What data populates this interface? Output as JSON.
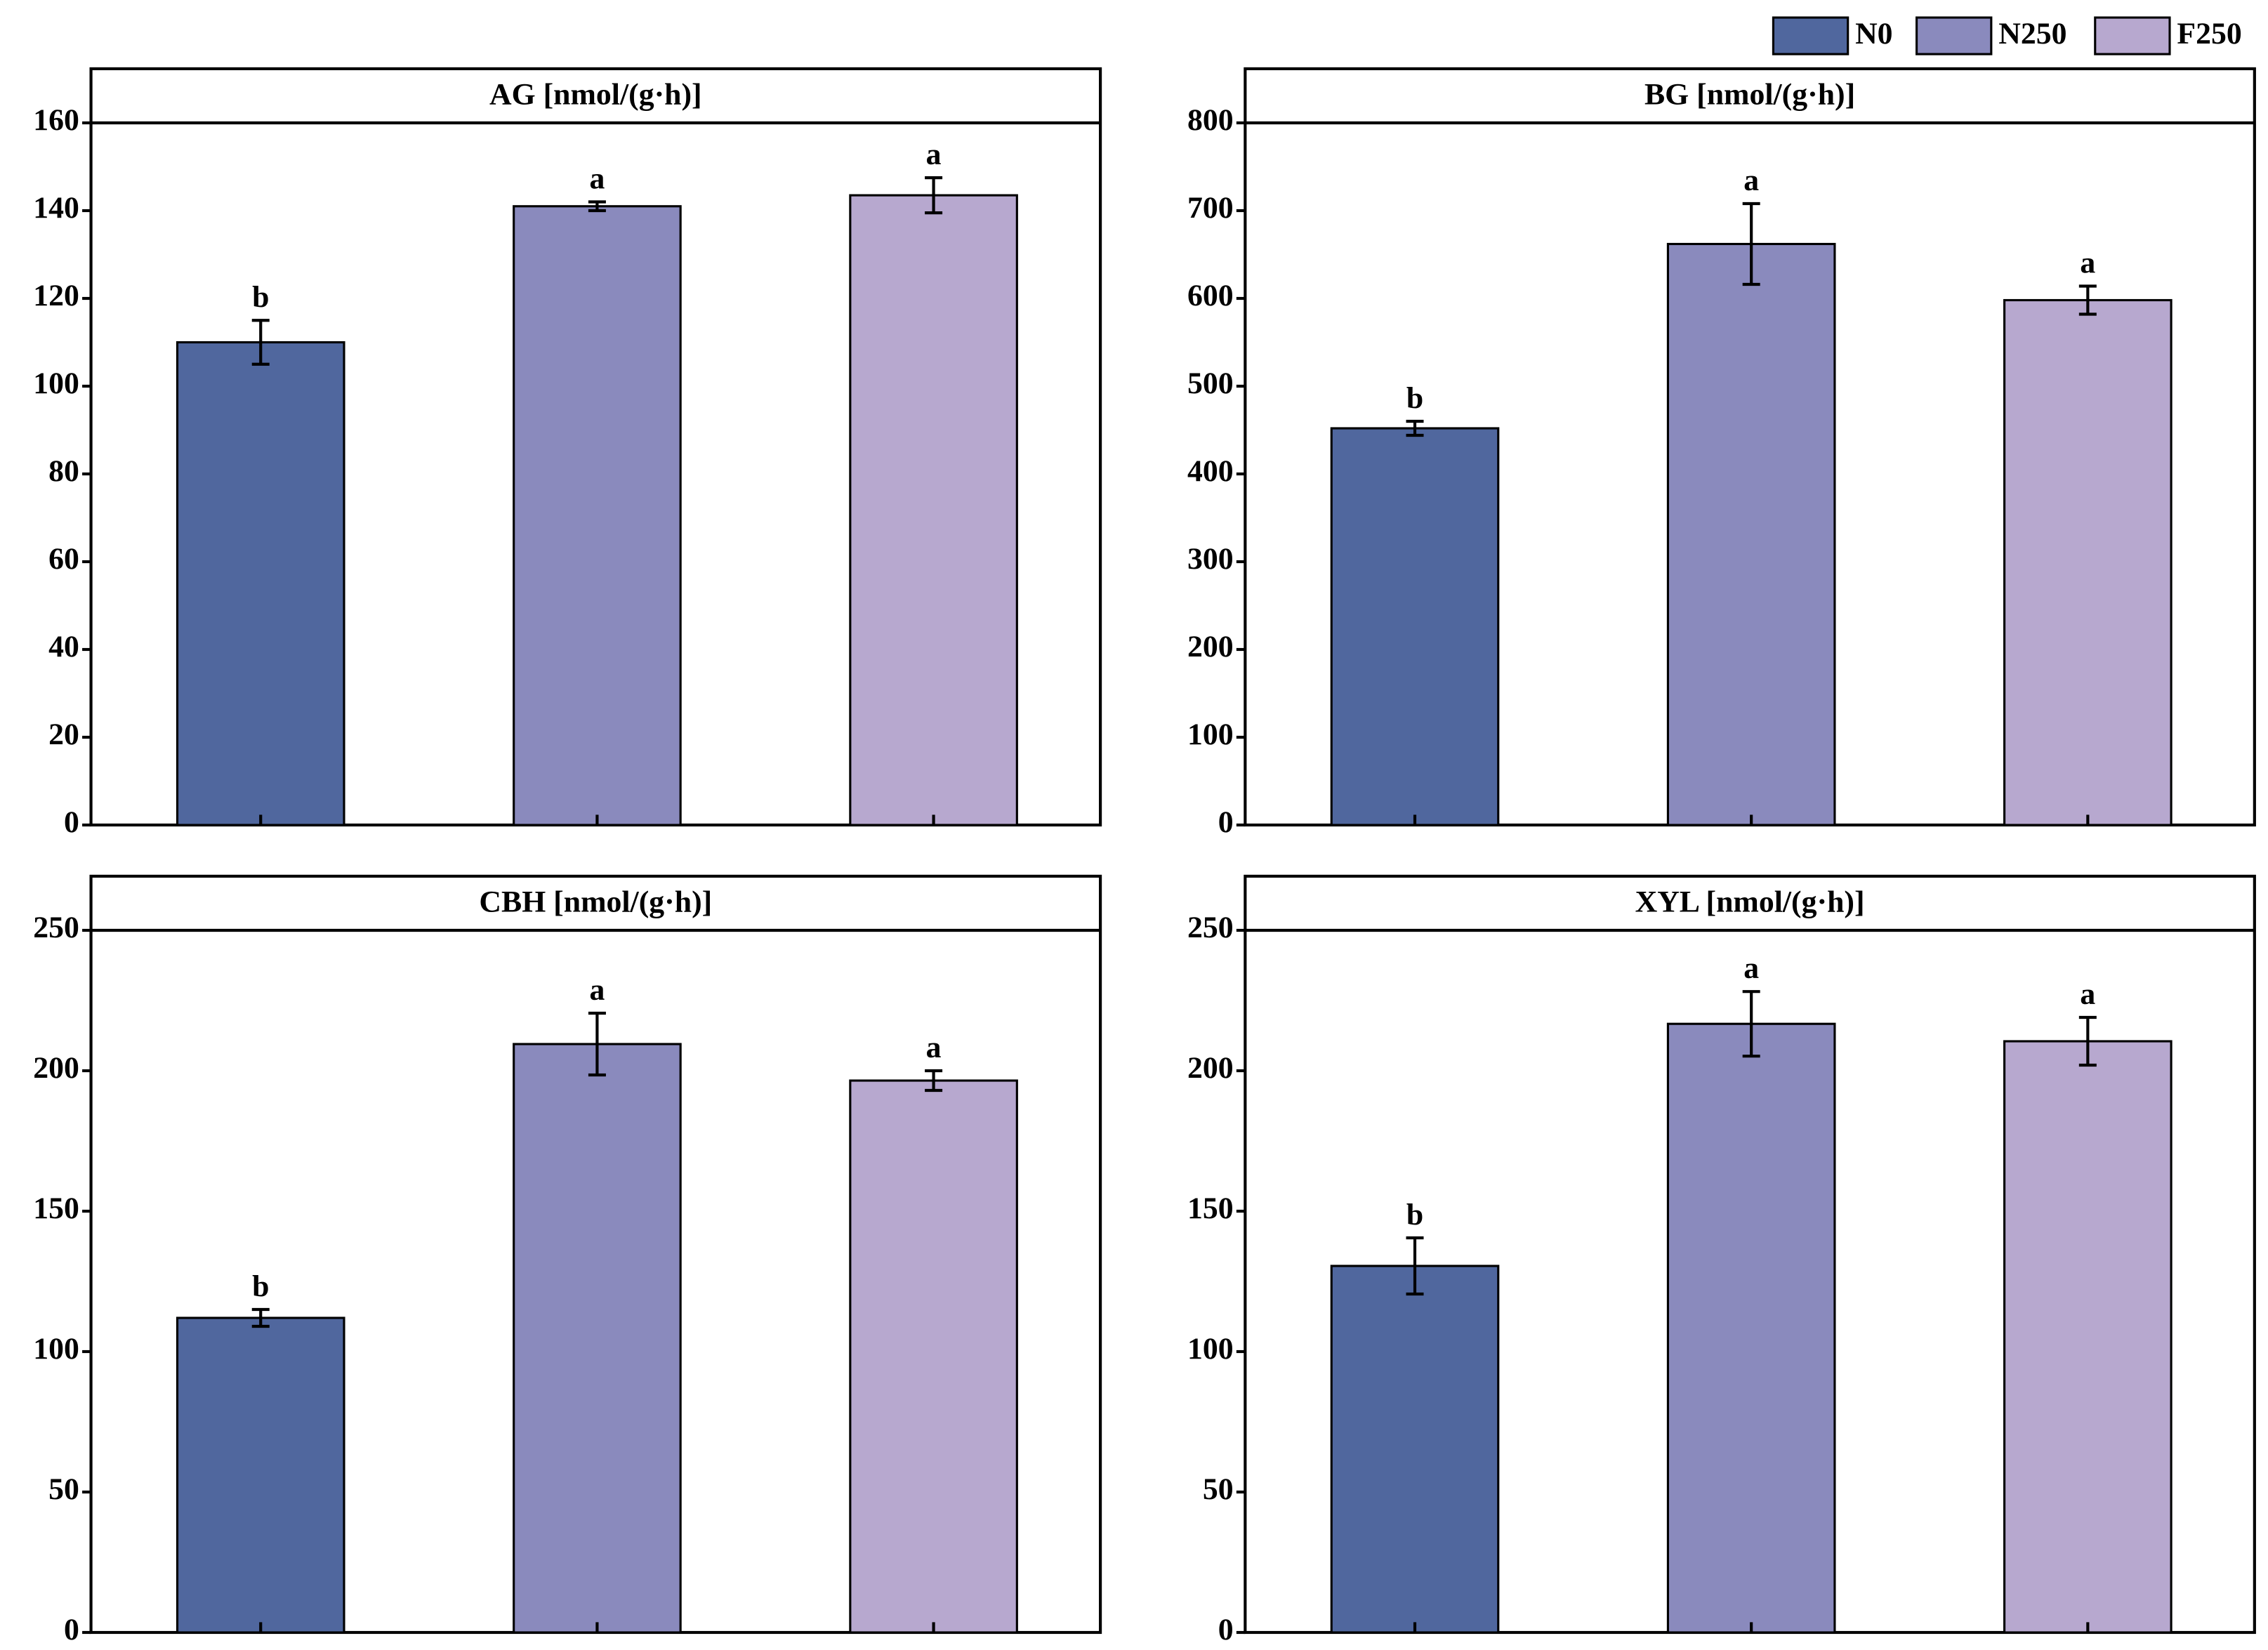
{
  "legend": [
    {
      "name": "N0",
      "color": "#50679e"
    },
    {
      "name": "N250",
      "color": "#8a8abd"
    },
    {
      "name": "F250",
      "color": "#b7a8cf"
    }
  ],
  "chart_data": [
    {
      "type": "bar",
      "title": "AG  [nmol/(g·h)]",
      "values": [
        110,
        141,
        143.5
      ],
      "errors": [
        5,
        1,
        4
      ],
      "labels": [
        "b",
        "a",
        "a"
      ],
      "ylim": [
        0,
        160
      ],
      "yticks": [
        0,
        20,
        40,
        60,
        80,
        100,
        120,
        140,
        160
      ]
    },
    {
      "type": "bar",
      "title": "BG  [nmol/(g·h)]",
      "values": [
        452,
        662,
        598
      ],
      "errors": [
        8,
        46,
        16
      ],
      "labels": [
        "b",
        "a",
        "a"
      ],
      "ylim": [
        0,
        800
      ],
      "yticks": [
        0,
        100,
        200,
        300,
        400,
        500,
        600,
        700,
        800
      ]
    },
    {
      "type": "bar",
      "title": "CBH  [nmol/(g·h)]",
      "values": [
        112,
        209.5,
        196.5
      ],
      "errors": [
        3,
        11,
        3.5
      ],
      "labels": [
        "b",
        "a",
        "a"
      ],
      "ylim": [
        0,
        250
      ],
      "yticks": [
        0,
        50,
        100,
        150,
        200,
        250
      ]
    },
    {
      "type": "bar",
      "title": "XYL  [nmol/(g·h)]",
      "values": [
        130.5,
        216.7,
        210.5
      ],
      "errors": [
        10,
        11.5,
        8.5
      ],
      "labels": [
        "b",
        "a",
        "a"
      ],
      "ylim": [
        0,
        250
      ],
      "yticks": [
        0,
        50,
        100,
        150,
        200,
        250
      ]
    }
  ]
}
